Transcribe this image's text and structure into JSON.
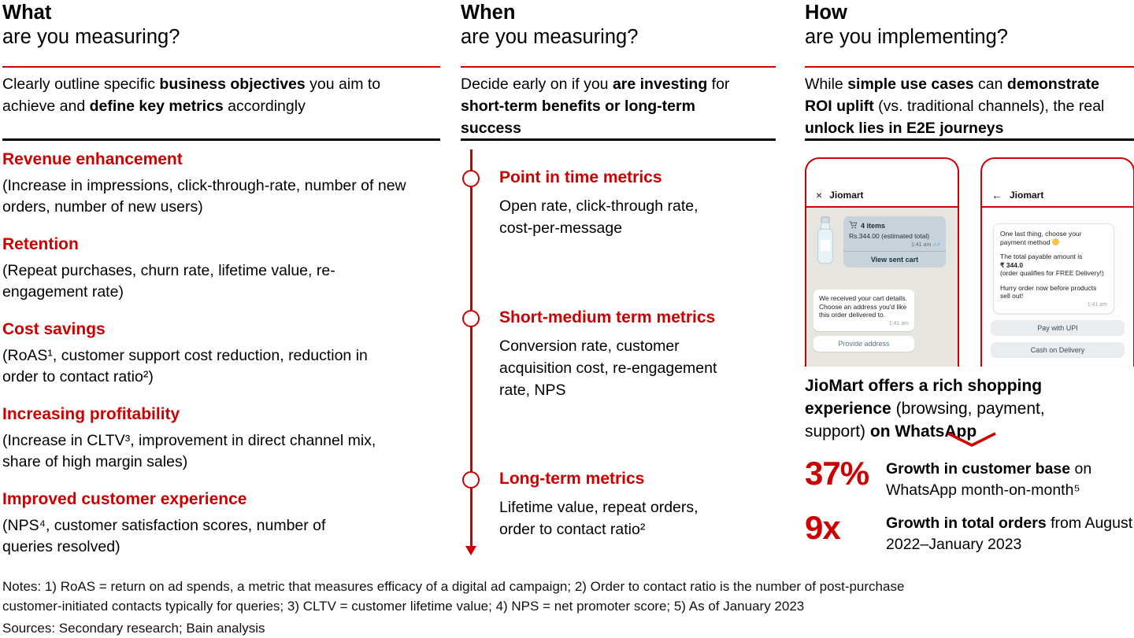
{
  "colors": {
    "accent": "#cc0000"
  },
  "glyphs": {
    "close": "×",
    "back": "←",
    "ticks": "✓✓"
  },
  "columns": {
    "what": {
      "title_bold": "What",
      "title_rest": "are you measuring?",
      "intro": [
        {
          "t": "Clearly outline specific "
        },
        {
          "t": "business objectives",
          "b": true
        },
        {
          "t": " you aim to achieve and "
        },
        {
          "t": "define key metrics",
          "b": true
        },
        {
          "t": " accordingly"
        }
      ],
      "items": [
        {
          "title": "Revenue enhancement",
          "desc": "(Increase in impressions, click-through-rate, number of new orders, number of new users)"
        },
        {
          "title": "Retention",
          "desc": "(Repeat purchases, churn rate, lifetime value, re-engagement rate)"
        },
        {
          "title": "Cost savings",
          "desc": "(RoAS¹, customer support cost reduction, reduction in order to contact ratio²)"
        },
        {
          "title": "Increasing profitability",
          "desc": "(Increase in CLTV³, improvement in direct channel mix, share of high margin sales)"
        },
        {
          "title": "Improved customer experience",
          "desc": "(NPS⁴, customer satisfaction scores, number of queries resolved)"
        }
      ]
    },
    "when": {
      "title_bold": "When",
      "title_rest": "are you measuring?",
      "intro": [
        {
          "t": "Decide early on if you "
        },
        {
          "t": "are investing",
          "b": true
        },
        {
          "t": " for "
        },
        {
          "t": "short-term benefits or long-term success",
          "b": true
        }
      ],
      "timeline": [
        {
          "title": "Point in time metrics",
          "desc": "Open rate, click-through rate, cost-per-message"
        },
        {
          "title": "Short-medium term metrics",
          "desc": "Conversion rate, customer acquisition cost, re-engagement rate, NPS"
        },
        {
          "title": "Long-term metrics",
          "desc": "Lifetime value, repeat orders, order to contact ratio²"
        }
      ]
    },
    "how": {
      "title_bold": "How",
      "title_rest": "are you implementing?",
      "intro": [
        {
          "t": "While "
        },
        {
          "t": "simple use cases",
          "b": true
        },
        {
          "t": " can "
        },
        {
          "t": "demonstrate ROI uplift",
          "b": true
        },
        {
          "t": " (vs. traditional channels), the real "
        },
        {
          "t": "unlock lies in E2E journeys",
          "b": true
        }
      ],
      "phone1": {
        "header": "Jiomart",
        "cart": {
          "items_label": "4 items",
          "total": "Rs.344.00 (estimated total)",
          "time": "1:41 am",
          "action": "View sent cart"
        },
        "message": "We received your cart details. Choose an address you'd like this order delivered to.",
        "message_time": "1:41 am",
        "action": "Provide address"
      },
      "phone2": {
        "header": "Jiomart",
        "line1": "One last thing, choose your payment method",
        "line2": "The total payable amount is",
        "amount": "₹ 344.0",
        "line3": "(order qualifies for FREE Delivery!)",
        "line4": "Hurry order now before products sell out!",
        "time": "1:41 am",
        "buttons": [
          "Pay with UPI",
          "Cash on Delivery"
        ]
      },
      "caption": [
        {
          "t": "JioMart offers a rich shopping experience",
          "b": true
        },
        {
          "t": " (browsing, payment, support) "
        },
        {
          "t": "on WhatsApp",
          "b": true
        }
      ],
      "stats": [
        {
          "value": "37%",
          "desc": [
            {
              "t": "Growth in customer base",
              "b": true
            },
            {
              "t": " on WhatsApp month-on-month⁵"
            }
          ]
        },
        {
          "value": "9x",
          "desc": [
            {
              "t": "Growth in total orders",
              "b": true
            },
            {
              "t": " from August 2022–January 2023"
            }
          ]
        }
      ]
    }
  },
  "footer": {
    "notes": "Notes: 1) RoAS = return on ad spends, a metric that measures efficacy of a digital ad campaign; 2) Order to contact ratio is the number of post-purchase customer-initiated contacts typically for queries; 3) CLTV = customer lifetime value; 4) NPS = net promoter score; 5) As of January 2023",
    "sources": "Sources: Secondary research; Bain analysis"
  }
}
